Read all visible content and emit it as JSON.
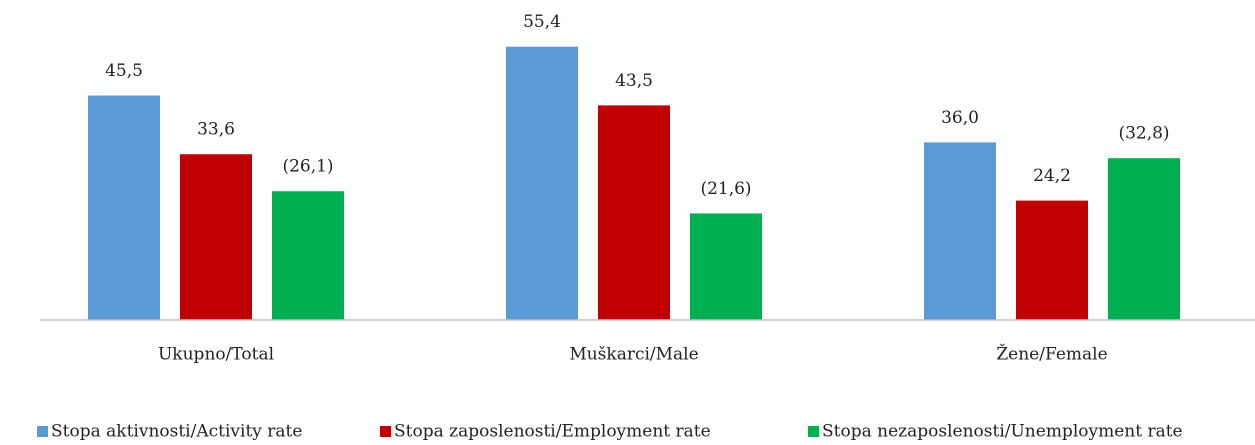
{
  "chart_data": {
    "type": "bar",
    "categories": [
      "Ukupno/Total",
      "Muškarci/Male",
      "Žene/Female"
    ],
    "series": [
      {
        "name": "Stopa aktivnosti/Activity rate",
        "color": "#5b9bd5",
        "values": [
          45.5,
          55.4,
          36.0
        ],
        "value_labels": [
          "45,5",
          "55,4",
          "36,0"
        ]
      },
      {
        "name": "Stopa zaposlenosti/Employment rate",
        "color": "#c00000",
        "values": [
          33.6,
          43.5,
          24.2
        ],
        "value_labels": [
          "33,6",
          "43,5",
          "24,2"
        ]
      },
      {
        "name": "Stopa nezaposlenosti/Unemployment rate",
        "color": "#00b050",
        "values": [
          26.1,
          21.6,
          32.8
        ],
        "value_labels": [
          "(26,1)",
          "(21,6)",
          "(32,8)"
        ]
      }
    ],
    "ylim": [
      0,
      60
    ],
    "legend": "bottom"
  }
}
